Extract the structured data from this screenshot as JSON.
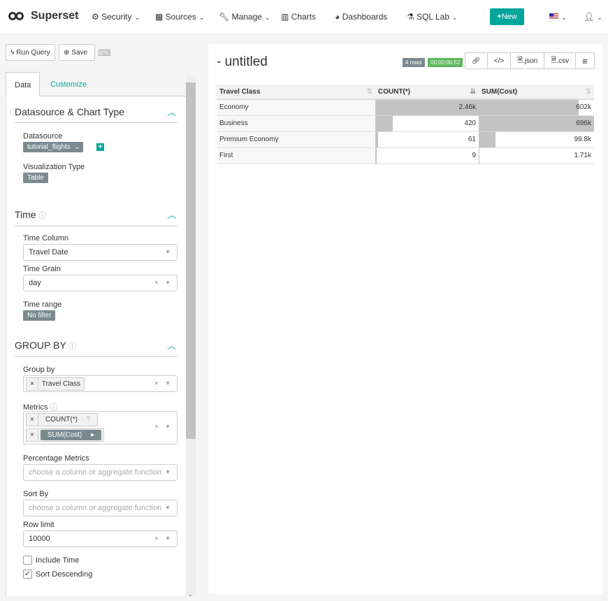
{
  "nav": {
    "brand": "Superset",
    "items": [
      {
        "label": "Security",
        "icon": "cogs-icon",
        "dropdown": true
      },
      {
        "label": "Sources",
        "icon": "table-icon",
        "dropdown": true
      },
      {
        "label": "Manage",
        "icon": "wrench-icon",
        "dropdown": true
      },
      {
        "label": "Charts",
        "icon": "bar-chart-icon",
        "dropdown": false
      },
      {
        "label": "Dashboards",
        "icon": "dashboard-icon",
        "dropdown": false
      },
      {
        "label": "SQL Lab",
        "icon": "flask-icon",
        "dropdown": true
      }
    ],
    "new_label": "New",
    "accent": "#00a699"
  },
  "toolbar": {
    "run_query": "Run Query",
    "save": "Save"
  },
  "tabs": [
    "Data",
    "Customize"
  ],
  "sections": {
    "datasource": {
      "title": "Datasource & Chart Type",
      "datasource_label": "Datasource",
      "datasource_value": "tutorial_flights",
      "viz_label": "Visualization Type",
      "viz_value": "Table"
    },
    "time": {
      "title": "Time",
      "time_column_label": "Time Column",
      "time_column_value": "Travel Date",
      "time_grain_label": "Time Grain",
      "time_grain_value": "day",
      "time_range_label": "Time range",
      "time_range_value": "No filter"
    },
    "groupby": {
      "title": "GROUP BY",
      "group_by_label": "Group by",
      "group_by_values": [
        "Travel Class"
      ],
      "metrics_label": "Metrics",
      "metrics": [
        "COUNT(*)",
        "SUM(Cost)"
      ],
      "pct_label": "Percentage Metrics",
      "pct_placeholder": "choose a column or aggregate function",
      "sort_label": "Sort By",
      "sort_placeholder": "choose a column or aggregate function",
      "row_limit_label": "Row limit",
      "row_limit_value": "10000",
      "include_time": {
        "label": "Include Time",
        "checked": false
      },
      "sort_desc": {
        "label": "Sort Descending",
        "checked": true
      }
    }
  },
  "chart": {
    "title": "- untitled",
    "rows_badge": "4 rows",
    "time_badge": "00:00:00.52",
    "buttons": [
      ".json",
      ".csv"
    ],
    "columns": [
      "Travel Class",
      "COUNT(*)",
      "SUM(Cost)"
    ],
    "rows": [
      {
        "cls": "Economy",
        "count": "2.46k",
        "count_val": 2460,
        "sum": "602k",
        "sum_val": 602000
      },
      {
        "cls": "Business",
        "count": "420",
        "count_val": 420,
        "sum": "696k",
        "sum_val": 696000
      },
      {
        "cls": "Premium Economy",
        "count": "61",
        "count_val": 61,
        "sum": "99.8k",
        "sum_val": 99800
      },
      {
        "cls": "First",
        "count": "9",
        "count_val": 9,
        "sum": "1.71k",
        "sum_val": 1710
      }
    ]
  }
}
